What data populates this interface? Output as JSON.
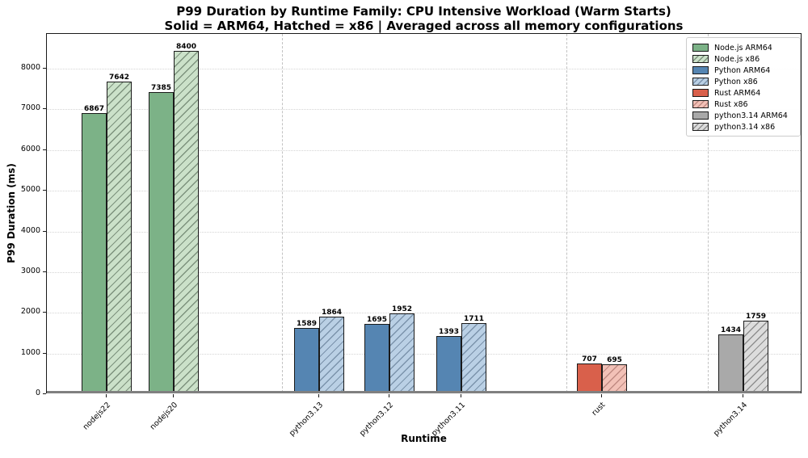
{
  "title": {
    "line1": "P99 Duration by Runtime Family: CPU Intensive Workload (Warm Starts)",
    "line2": "Solid = ARM64, Hatched = x86 | Averaged across all memory configurations"
  },
  "chart_data": {
    "type": "bar",
    "title": "P99 Duration by Runtime Family: CPU Intensive Workload (Warm Starts)",
    "subtitle": "Solid = ARM64, Hatched = x86 | Averaged across all memory configurations",
    "xlabel": "Runtime",
    "ylabel": "P99 Duration (ms)",
    "ylim": [
      0,
      8850
    ],
    "y_ticks": [
      0,
      1000,
      2000,
      3000,
      4000,
      5000,
      6000,
      7000,
      8000
    ],
    "grid": {
      "horizontal": "dotted gray lines at each 1000 ms",
      "vertical": "dashed gray separators between runtime families"
    },
    "legend_position": "upper right",
    "categories": [
      "nodejs22",
      "nodejs20",
      "python3.13",
      "python3.12",
      "python3.11",
      "rust",
      "python3.14"
    ],
    "families": [
      "Node.js",
      "Node.js",
      "Python",
      "Python",
      "Python",
      "Rust",
      "python3.14"
    ],
    "series": [
      {
        "name": "ARM64",
        "style": "solid",
        "values": [
          6867,
          7385,
          1589,
          1695,
          1393,
          707,
          1434
        ]
      },
      {
        "name": "x86",
        "style": "hatched",
        "values": [
          7642,
          8400,
          1864,
          1952,
          1711,
          695,
          1759
        ]
      }
    ],
    "colors": {
      "Node.js": {
        "solid": "#7cb287",
        "hatch_bg": "#cbe1c9",
        "hatch_line": "#7d927d"
      },
      "Python": {
        "solid": "#5585b2",
        "hatch_bg": "#bad0e5",
        "hatch_line": "#7b93ab"
      },
      "Rust": {
        "solid": "#d9604b",
        "hatch_bg": "#f2c1b7",
        "hatch_line": "#c08a82"
      },
      "python3.14": {
        "solid": "#a9a9a9",
        "hatch_bg": "#dcdcdc",
        "hatch_line": "#8f8f8f"
      }
    },
    "legend": [
      {
        "label": "Node.js ARM64",
        "family": "Node.js",
        "style": "solid"
      },
      {
        "label": "Node.js x86",
        "family": "Node.js",
        "style": "hatched"
      },
      {
        "label": "Python ARM64",
        "family": "Python",
        "style": "solid"
      },
      {
        "label": "Python x86",
        "family": "Python",
        "style": "hatched"
      },
      {
        "label": "Rust ARM64",
        "family": "Rust",
        "style": "solid"
      },
      {
        "label": "Rust x86",
        "family": "Rust",
        "style": "hatched"
      },
      {
        "label": "python3.14 ARM64",
        "family": "python3.14",
        "style": "solid"
      },
      {
        "label": "python3.14 x86",
        "family": "python3.14",
        "style": "hatched"
      }
    ]
  }
}
